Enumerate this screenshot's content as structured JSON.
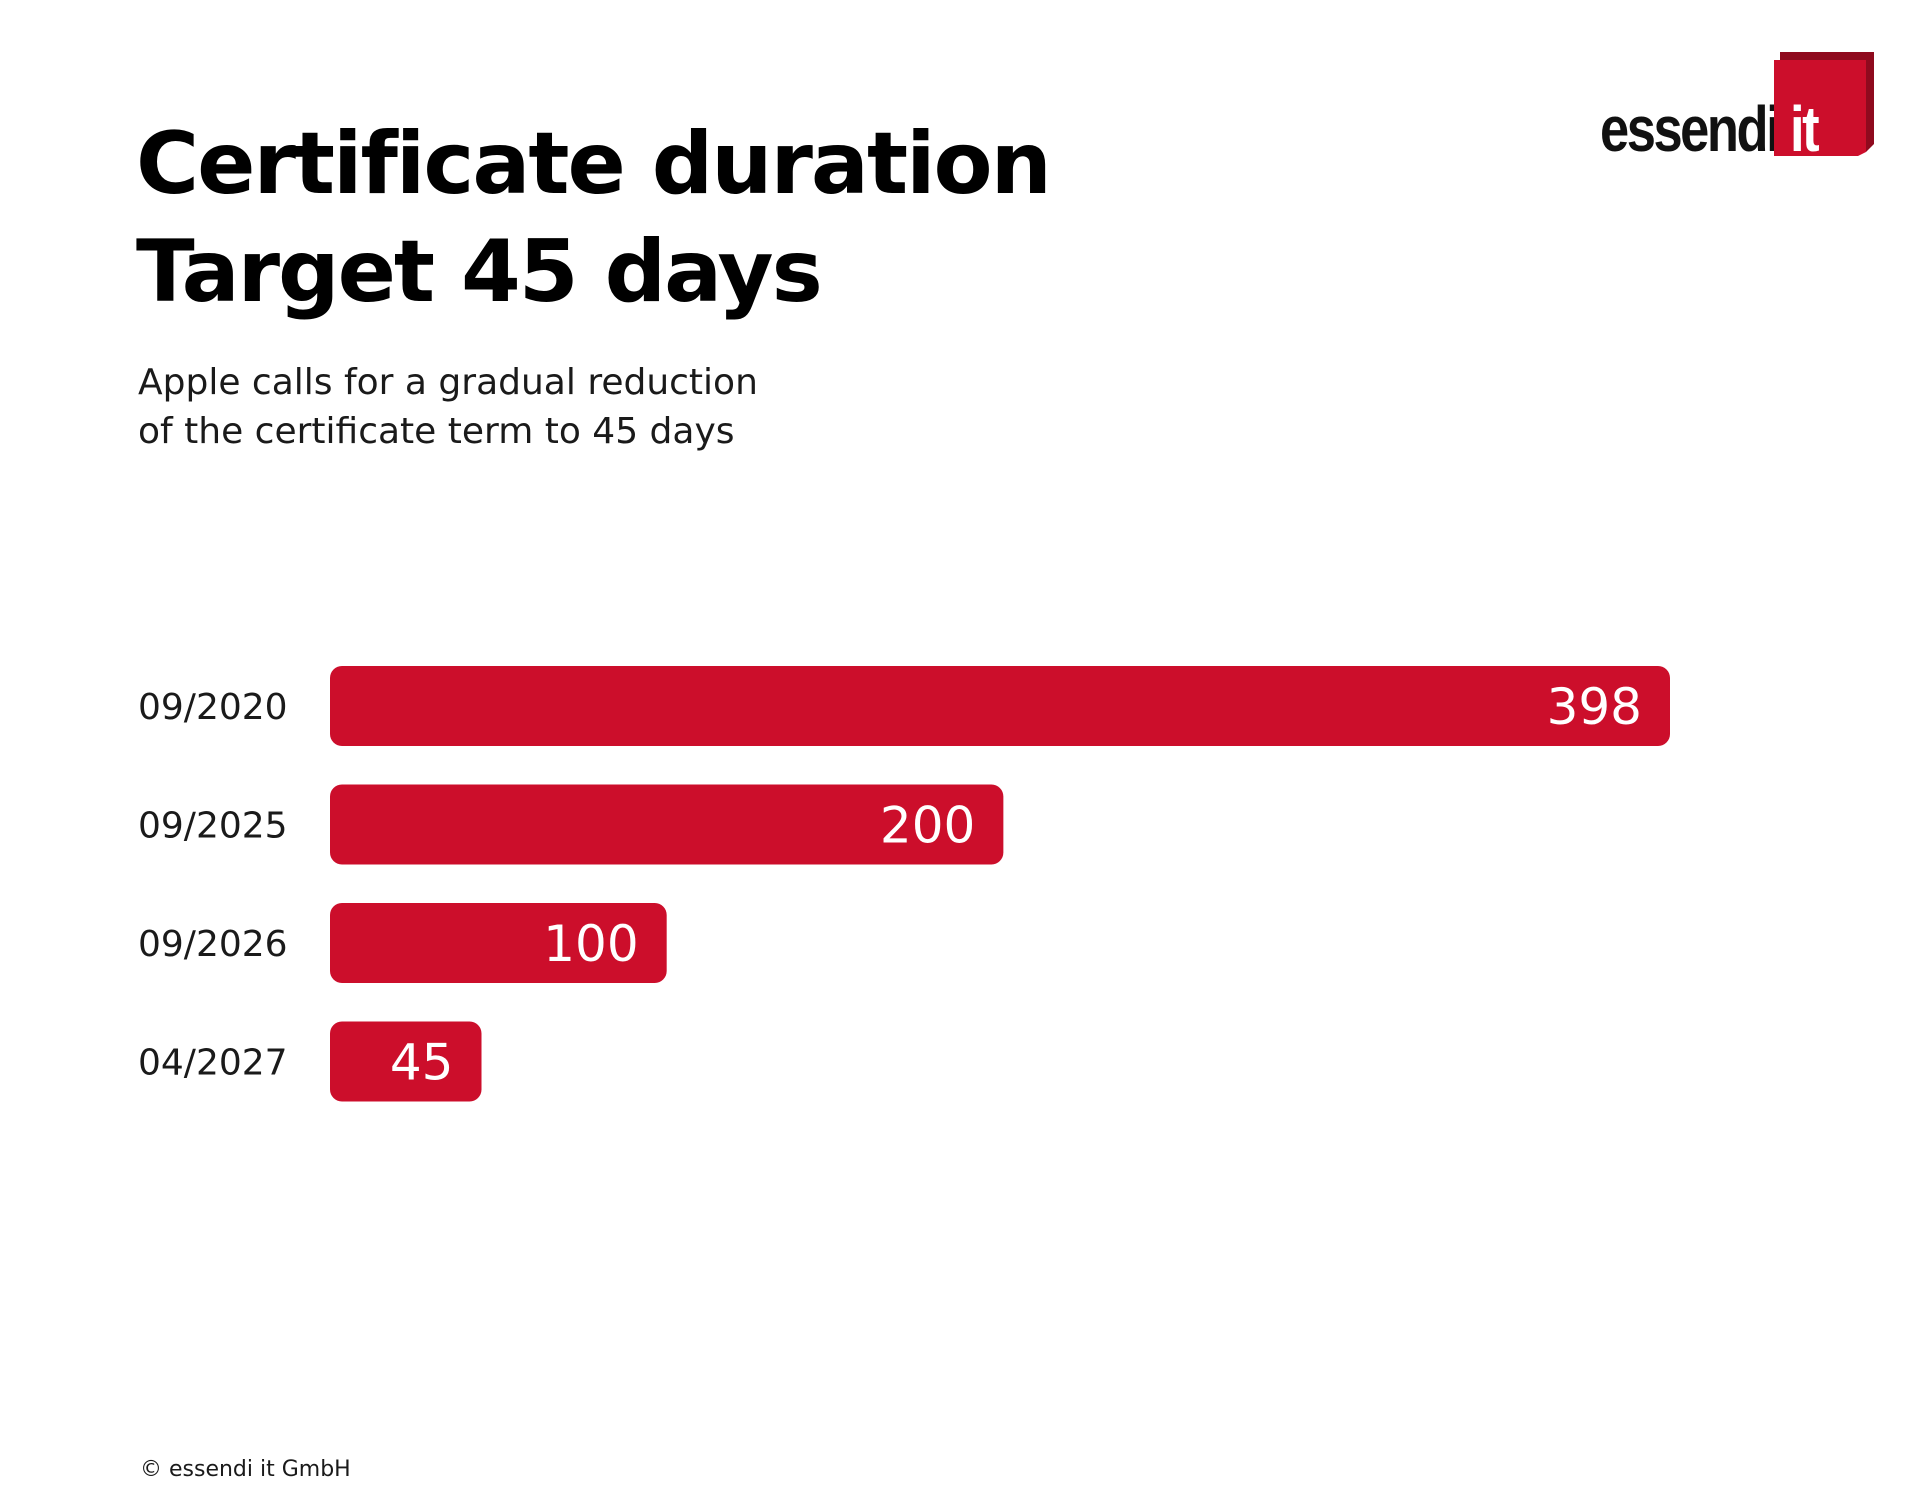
{
  "header": {
    "title_line1": "Certificate duration",
    "title_line2": "Target 45 days",
    "subtitle_line1": "Apple calls for a gradual reduction",
    "subtitle_line2": "of the certificate term to 45 days"
  },
  "logo": {
    "word": "essendi",
    "box_text": "it",
    "box_color": "#cc0e2b"
  },
  "footer": {
    "copyright": "© essendi it GmbH"
  },
  "colors": {
    "bar": "#cc0e2b",
    "bar_label": "#ffffff",
    "category_label": "#1a1a1a"
  },
  "chart_data": {
    "type": "bar",
    "orientation": "horizontal",
    "categories": [
      "09/2020",
      "09/2025",
      "09/2026",
      "04/2027"
    ],
    "values": [
      398,
      200,
      100,
      45
    ],
    "title": "",
    "xlabel": "",
    "ylabel": "",
    "grid": false,
    "legend": false,
    "data_labels": true
  }
}
